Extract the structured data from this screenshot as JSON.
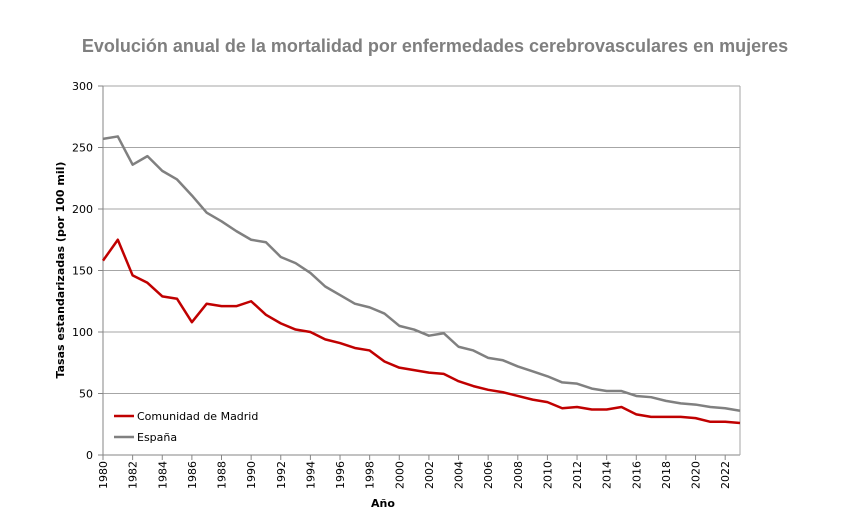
{
  "chart_data": {
    "type": "line",
    "title": "Evolución anual de la mortalidad por enfermedades cerebrovasculares en mujeres",
    "xlabel": "Año",
    "ylabel": "Tasas estandarizadas (por 100 mil)",
    "ylim": [
      0,
      300
    ],
    "yticks": [
      0,
      50,
      100,
      150,
      200,
      250,
      300
    ],
    "xlim": [
      1980,
      2023
    ],
    "xticks": [
      1980,
      1982,
      1984,
      1986,
      1988,
      1990,
      1992,
      1994,
      1996,
      1998,
      2000,
      2002,
      2004,
      2006,
      2008,
      2010,
      2012,
      2014,
      2016,
      2018,
      2020,
      2022
    ],
    "grid": "horizontal",
    "legend": "bottom-left",
    "x": [
      1980,
      1981,
      1982,
      1983,
      1984,
      1985,
      1986,
      1987,
      1988,
      1989,
      1990,
      1991,
      1992,
      1993,
      1994,
      1995,
      1996,
      1997,
      1998,
      1999,
      2000,
      2001,
      2002,
      2003,
      2004,
      2005,
      2006,
      2007,
      2008,
      2009,
      2010,
      2011,
      2012,
      2013,
      2014,
      2015,
      2016,
      2017,
      2018,
      2019,
      2020,
      2021,
      2022,
      2023
    ],
    "series": [
      {
        "name": "Comunidad de Madrid",
        "color": "#c00000",
        "values": [
          158,
          175,
          146,
          140,
          129,
          127,
          108,
          123,
          121,
          121,
          125,
          114,
          107,
          102,
          100,
          94,
          91,
          87,
          85,
          76,
          71,
          69,
          67,
          66,
          60,
          56,
          53,
          51,
          48,
          45,
          43,
          38,
          39,
          37,
          37,
          39,
          33,
          31,
          31,
          31,
          30,
          27,
          27,
          26
        ]
      },
      {
        "name": "España",
        "color": "#808080",
        "values": [
          257,
          259,
          236,
          243,
          231,
          224,
          211,
          197,
          190,
          182,
          175,
          173,
          161,
          156,
          148,
          137,
          130,
          123,
          120,
          115,
          105,
          102,
          97,
          99,
          88,
          85,
          79,
          77,
          72,
          68,
          64,
          59,
          58,
          54,
          52,
          52,
          48,
          47,
          44,
          42,
          41,
          39,
          38,
          36
        ]
      }
    ]
  }
}
